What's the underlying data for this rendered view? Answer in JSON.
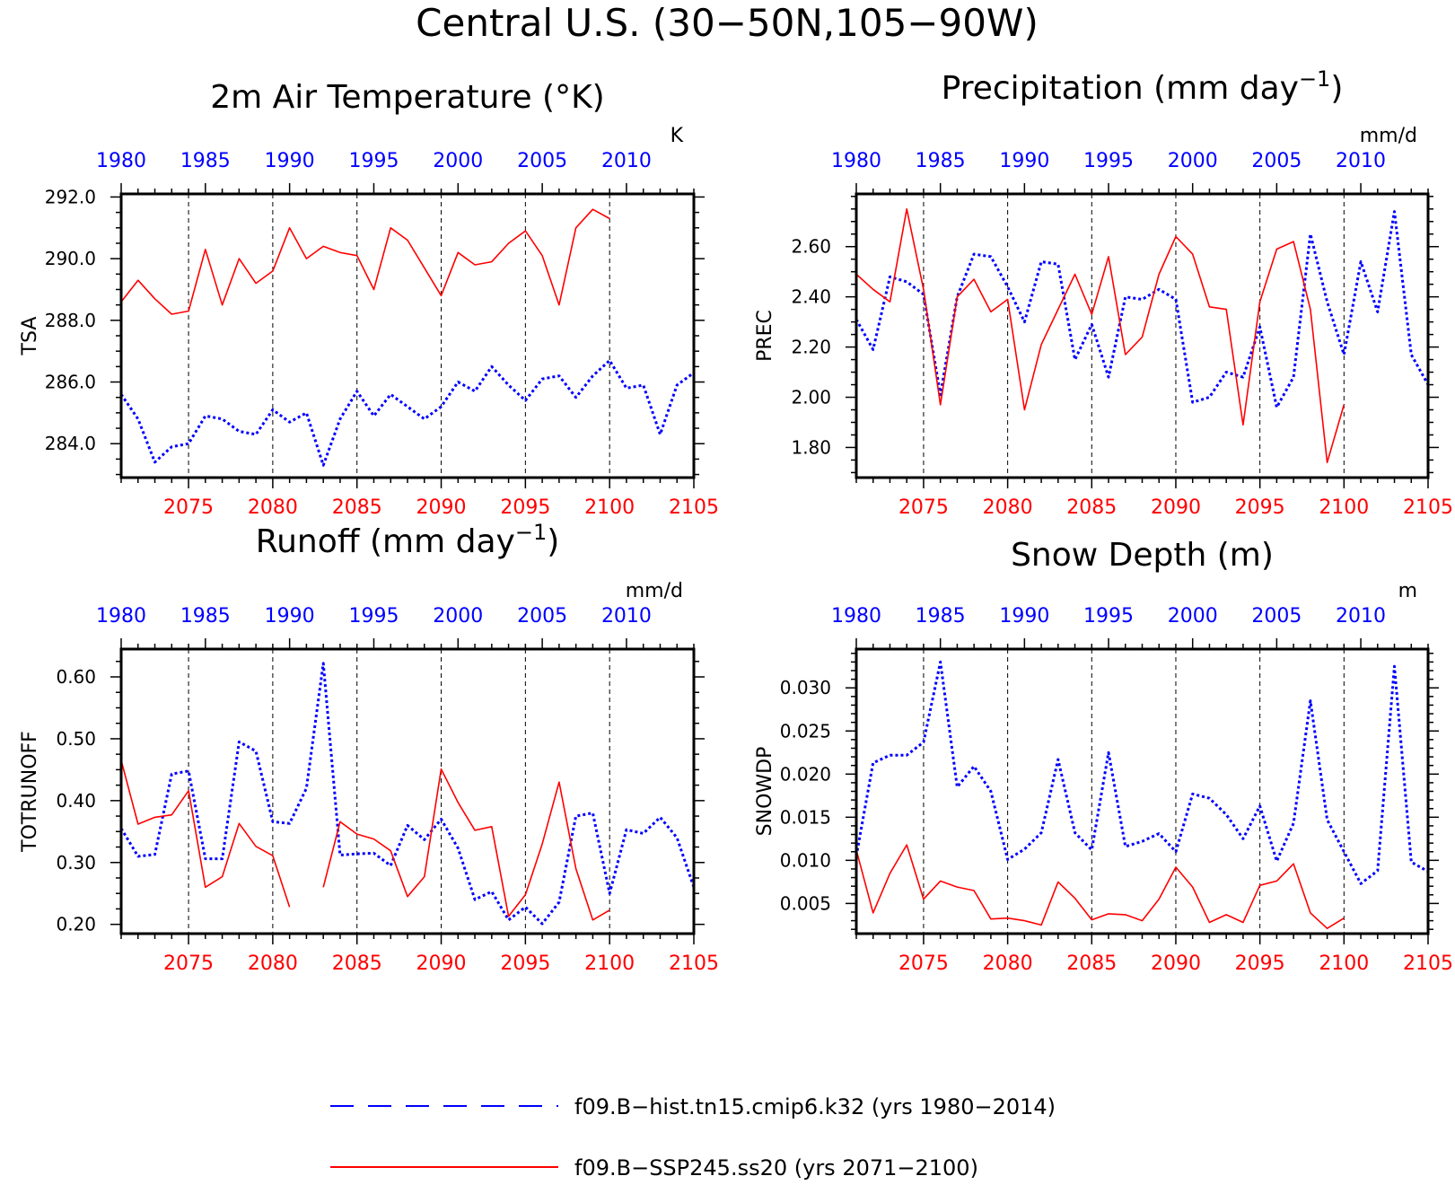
{
  "title": "Central U.S. (30−50N,105−90W)",
  "colors": {
    "hist": "#0000ff",
    "ssp": "#ff0000"
  },
  "legend": [
    {
      "name": "f09.B−hist.tn15.cmip6.k32 (yrs 1980−2014)",
      "color": "#0000ff",
      "style": "dashed"
    },
    {
      "name": "f09.B−SSP245.ss20 (yrs 2071−2100)",
      "color": "#ff0000",
      "style": "solid"
    }
  ],
  "chart_data": [
    {
      "type": "line",
      "title": "2m Air Temperature (°K)",
      "title_sup": "",
      "title_after": "",
      "ylabel": "TSA",
      "units": "K",
      "ylim": [
        282.9,
        292.1
      ],
      "yticks": [
        284.0,
        286.0,
        288.0,
        290.0,
        292.0
      ],
      "ytick_labels": [
        "284.0",
        "286.0",
        "288.0",
        "290.0",
        "292.0"
      ],
      "ytick_minor": 0.5,
      "x_ssp_range": [
        2071,
        2105
      ],
      "x_ssp_ticks": [
        "2075",
        "2080",
        "2085",
        "2090",
        "2095",
        "2100",
        "2105"
      ],
      "x_hist_ticks": [
        "1980",
        "1985",
        "1990",
        "1995",
        "2000",
        "2005",
        "2010"
      ],
      "series": [
        {
          "name": "f09.B−hist.tn15.cmip6.k32",
          "x_start": 1980,
          "color": "#0000ff",
          "values": [
            285.6,
            284.8,
            283.4,
            283.9,
            284.0,
            284.9,
            284.8,
            284.4,
            284.3,
            285.1,
            284.7,
            285.0,
            283.3,
            284.8,
            285.7,
            284.9,
            285.6,
            285.2,
            284.8,
            285.2,
            286.0,
            285.7,
            286.5,
            285.9,
            285.4,
            286.1,
            286.2,
            285.5,
            286.2,
            286.7,
            285.8,
            285.9,
            284.3,
            285.9,
            286.3
          ]
        },
        {
          "name": "f09.B−SSP245.ss20",
          "x_start": 2071,
          "color": "#ff0000",
          "values": [
            288.6,
            289.3,
            288.7,
            288.2,
            288.3,
            290.3,
            288.5,
            290.0,
            289.2,
            289.6,
            291.0,
            290.0,
            290.4,
            290.2,
            290.1,
            289.0,
            291.0,
            290.6,
            289.7,
            288.8,
            290.2,
            289.8,
            289.9,
            290.5,
            290.9,
            290.1,
            288.5,
            291.0,
            291.6,
            291.3
          ]
        }
      ]
    },
    {
      "type": "line",
      "title": "Precipitation (mm day",
      "title_sup": "−1",
      "title_after": ")",
      "ylabel": "PREC",
      "units": "mm/d",
      "ylim": [
        1.68,
        2.81
      ],
      "yticks": [
        1.8,
        2.0,
        2.2,
        2.4,
        2.6
      ],
      "ytick_labels": [
        "1.80",
        "2.00",
        "2.20",
        "2.40",
        "2.60"
      ],
      "ytick_minor": 0.05,
      "x_ssp_range": [
        2071,
        2105
      ],
      "x_ssp_ticks": [
        "2075",
        "2080",
        "2085",
        "2090",
        "2095",
        "2100",
        "2105"
      ],
      "x_hist_ticks": [
        "1980",
        "1985",
        "1990",
        "1995",
        "2000",
        "2005",
        "2010"
      ],
      "series": [
        {
          "name": "f09.B−hist.tn15.cmip6.k32",
          "x_start": 1980,
          "color": "#0000ff",
          "values": [
            2.31,
            2.19,
            2.48,
            2.46,
            2.41,
            2.01,
            2.4,
            2.57,
            2.56,
            2.44,
            2.3,
            2.54,
            2.53,
            2.15,
            2.29,
            2.08,
            2.4,
            2.39,
            2.43,
            2.39,
            1.98,
            2.0,
            2.1,
            2.08,
            2.28,
            1.96,
            2.08,
            2.65,
            2.38,
            2.17,
            2.54,
            2.34,
            2.74,
            2.17,
            2.05
          ]
        },
        {
          "name": "f09.B−SSP245.ss20",
          "x_start": 2071,
          "color": "#ff0000",
          "values": [
            2.49,
            2.43,
            2.38,
            2.75,
            2.43,
            1.97,
            2.4,
            2.47,
            2.34,
            2.39,
            1.95,
            2.21,
            2.35,
            2.49,
            2.33,
            2.56,
            2.17,
            2.24,
            2.49,
            2.64,
            2.57,
            2.36,
            2.35,
            1.89,
            2.38,
            2.59,
            2.62,
            2.35,
            1.74,
            1.97
          ]
        }
      ]
    },
    {
      "type": "line",
      "title": "Runoff (mm day",
      "title_sup": "−1",
      "title_after": ")",
      "ylabel": "TOTRUNOFF",
      "units": "mm/d",
      "ylim": [
        0.185,
        0.645
      ],
      "yticks": [
        0.2,
        0.3,
        0.4,
        0.5,
        0.6
      ],
      "ytick_labels": [
        "0.20",
        "0.30",
        "0.40",
        "0.50",
        "0.60"
      ],
      "ytick_minor": 0.025,
      "x_ssp_range": [
        2071,
        2105
      ],
      "x_ssp_ticks": [
        "2075",
        "2080",
        "2085",
        "2090",
        "2095",
        "2100",
        "2105"
      ],
      "x_hist_ticks": [
        "1980",
        "1985",
        "1990",
        "1995",
        "2000",
        "2005",
        "2010"
      ],
      "series": [
        {
          "name": "f09.B−hist.tn15.cmip6.k32",
          "x_start": 1980,
          "color": "#0000ff",
          "values": [
            0.355,
            0.31,
            0.313,
            0.443,
            0.448,
            0.306,
            0.306,
            0.495,
            0.48,
            0.366,
            0.363,
            0.42,
            0.622,
            0.312,
            0.314,
            0.315,
            0.295,
            0.36,
            0.337,
            0.37,
            0.323,
            0.24,
            0.253,
            0.207,
            0.228,
            0.201,
            0.236,
            0.375,
            0.38,
            0.25,
            0.353,
            0.347,
            0.373,
            0.34,
            0.26
          ]
        },
        {
          "name": "f09.B−SSP245.ss20",
          "x_start": 2071,
          "color": "#ff0000",
          "values": [
            0.465,
            0.362,
            0.373,
            0.377,
            0.416,
            0.26,
            0.277,
            0.363,
            0.326,
            0.311,
            0.228,
            null,
            0.26,
            0.366,
            0.346,
            0.338,
            0.319,
            0.245,
            0.277,
            0.451,
            0.397,
            0.352,
            0.358,
            0.213,
            0.248,
            0.33,
            0.43,
            0.29,
            0.207,
            0.223
          ]
        }
      ]
    },
    {
      "type": "line",
      "title": "Snow Depth (m)",
      "title_sup": "",
      "title_after": "",
      "ylabel": "SNOWDP",
      "units": "m",
      "ylim": [
        0.0015,
        0.0345
      ],
      "yticks": [
        0.005,
        0.01,
        0.015,
        0.02,
        0.025,
        0.03
      ],
      "ytick_labels": [
        "0.005",
        "0.010",
        "0.015",
        "0.020",
        "0.025",
        "0.030"
      ],
      "ytick_minor": 0.001,
      "x_ssp_range": [
        2071,
        2105
      ],
      "x_ssp_ticks": [
        "2075",
        "2080",
        "2085",
        "2090",
        "2095",
        "2100",
        "2105"
      ],
      "x_hist_ticks": [
        "1980",
        "1985",
        "1990",
        "1995",
        "2000",
        "2005",
        "2010"
      ],
      "series": [
        {
          "name": "f09.B−hist.tn15.cmip6.k32",
          "x_start": 1980,
          "color": "#0000ff",
          "values": [
            0.0105,
            0.0213,
            0.0222,
            0.0222,
            0.0237,
            0.033,
            0.0185,
            0.0209,
            0.018,
            0.0101,
            0.0113,
            0.0132,
            0.0217,
            0.0132,
            0.0112,
            0.0225,
            0.0116,
            0.0122,
            0.0131,
            0.011,
            0.0177,
            0.0172,
            0.0153,
            0.0125,
            0.0163,
            0.0099,
            0.0143,
            0.0285,
            0.0147,
            0.011,
            0.0073,
            0.0088,
            0.0325,
            0.0098,
            0.0087
          ]
        },
        {
          "name": "f09.B−SSP245.ss20",
          "x_start": 2071,
          "color": "#ff0000",
          "values": [
            0.0112,
            0.0039,
            0.0085,
            0.0118,
            0.0055,
            0.0076,
            0.0069,
            0.0065,
            0.0032,
            0.0033,
            0.003,
            0.0025,
            0.0075,
            0.0056,
            0.0031,
            0.0038,
            0.0037,
            0.003,
            0.0055,
            0.0092,
            0.0069,
            0.0028,
            0.0037,
            0.0028,
            0.0071,
            0.0076,
            0.0096,
            0.0039,
            0.0021,
            0.0033
          ]
        }
      ]
    }
  ]
}
